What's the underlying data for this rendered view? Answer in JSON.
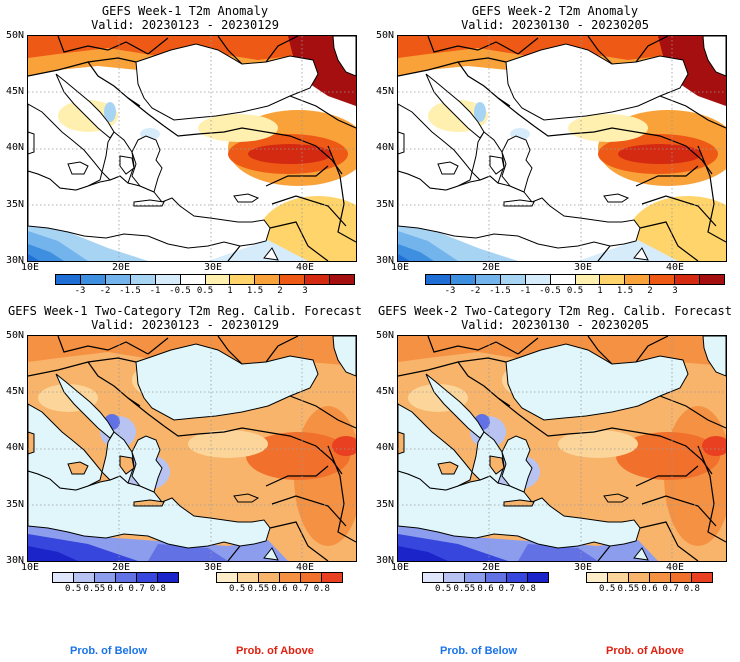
{
  "panels": [
    {
      "title": "GEFS Week-1 T2m Anomaly",
      "valid": "Valid: 20230123 - 20230129",
      "kind": "anomaly"
    },
    {
      "title": "GEFS Week-2 T2m Anomaly",
      "valid": "Valid: 20230130 - 20230205",
      "kind": "anomaly"
    },
    {
      "title": "GEFS Week-1 Two-Category T2m Reg. Calib. Forecast",
      "valid": "Valid: 20230123 - 20230129",
      "kind": "prob"
    },
    {
      "title": "GEFS Week-2 Two-Category T2m Reg. Calib. Forecast",
      "valid": "Valid: 20230130 - 20230205",
      "kind": "prob"
    }
  ],
  "map": {
    "lat_labels": [
      "50N",
      "45N",
      "40N",
      "35N",
      "30N"
    ],
    "lon_labels": [
      "10E",
      "20E",
      "30E",
      "40E"
    ]
  },
  "anomaly_colorbar": {
    "ticks": [
      "-3",
      "-2",
      "-1.5",
      "-1",
      "-0.5",
      "0.5",
      "1",
      "1.5",
      "2",
      "3"
    ],
    "colors": [
      "#1f6ed6",
      "#3f8fe0",
      "#74b4ec",
      "#a8d4f4",
      "#d6ecfb",
      "#ffffff",
      "#fff0b0",
      "#ffd46a",
      "#f9a23a",
      "#ee5a16",
      "#d42a12",
      "#a50f0f"
    ]
  },
  "below_colorbar": {
    "ticks": [
      "0.5",
      "0.55",
      "0.6",
      "0.7",
      "0.8"
    ],
    "colors": [
      "#e0e6fb",
      "#b8c3f2",
      "#8d9ded",
      "#6272e4",
      "#3746dc",
      "#1b24c8"
    ]
  },
  "above_colorbar": {
    "ticks": [
      "0.5",
      "0.55",
      "0.6",
      "0.7",
      "0.8"
    ],
    "colors": [
      "#fdedc8",
      "#fcd59a",
      "#f8b46a",
      "#f49142",
      "#f0702c",
      "#e84020"
    ]
  },
  "legend": {
    "below": "Prob. of Below",
    "above": "Prob. of Above"
  },
  "colors": {
    "below_text": "#1a73e8",
    "above_text": "#e02010",
    "prob_ocean": "#e0f6fa"
  }
}
